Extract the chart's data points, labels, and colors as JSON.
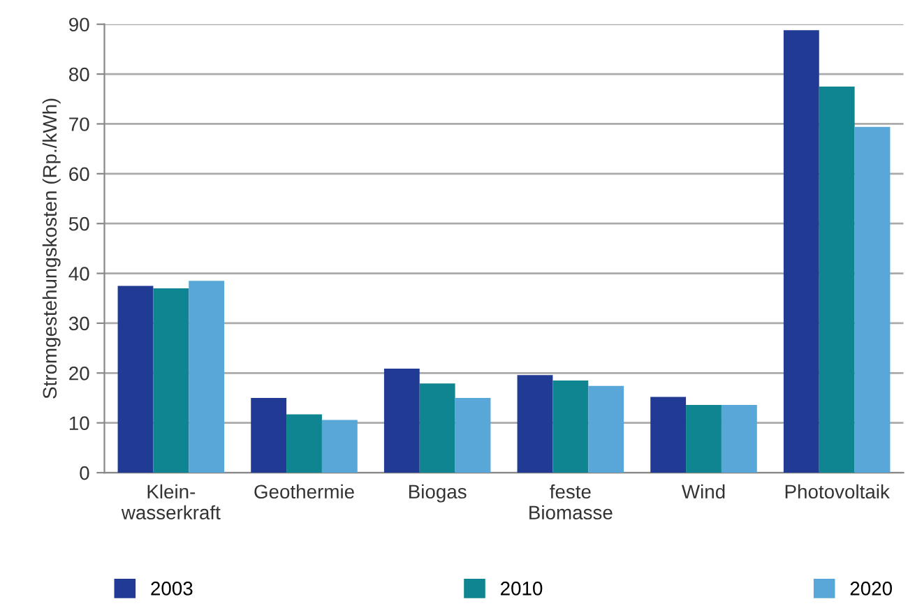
{
  "chart_data": {
    "type": "bar",
    "ylabel": "Stromgestehungskosten (Rp./kWh)",
    "categories": [
      "Klein-\nwasserkraft",
      "Geothermie",
      "Biogas",
      "feste\nBiomasse",
      "Wind",
      "Photovoltaik"
    ],
    "series": [
      {
        "name": "2003",
        "color": "#213a93",
        "values": [
          37.5,
          15,
          20.9,
          19.6,
          15.2,
          88.8
        ]
      },
      {
        "name": "2010",
        "color": "#0e8590",
        "values": [
          37,
          11.7,
          17.9,
          18.5,
          13.6,
          77.5
        ]
      },
      {
        "name": "2020",
        "color": "#58a7d8",
        "values": [
          38.5,
          10.6,
          15,
          17.4,
          13.6,
          69.4
        ]
      }
    ],
    "ylim": [
      0,
      90
    ],
    "yticks": [
      0,
      10,
      20,
      30,
      40,
      50,
      60,
      70,
      80,
      90
    ],
    "grid": "y",
    "legend": "bottom"
  }
}
